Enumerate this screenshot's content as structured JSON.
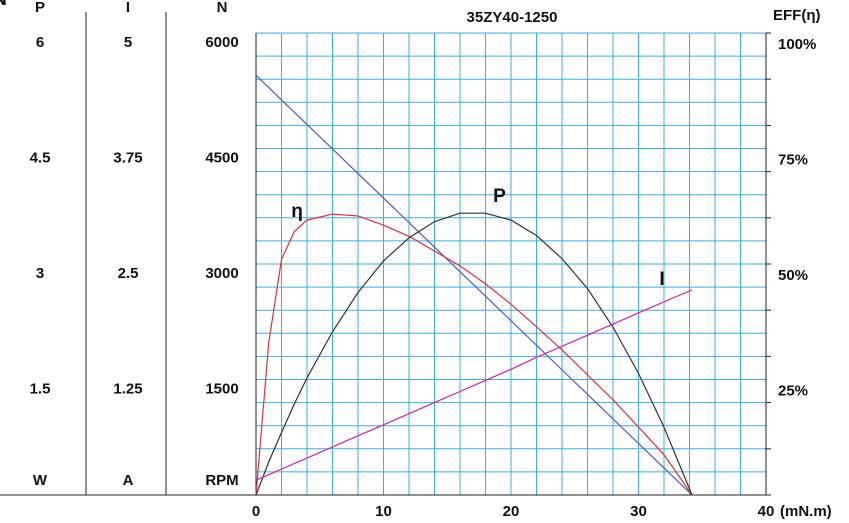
{
  "chart_data": {
    "type": "line",
    "title": "35ZY40-1250",
    "x_label": "(mN.m)",
    "x": [
      0,
      1,
      2,
      3,
      4,
      6,
      8,
      10,
      12,
      14,
      16,
      18,
      20,
      22,
      24,
      26,
      28,
      30,
      32,
      34.2
    ],
    "xlim": [
      0,
      40
    ],
    "xticks": [
      0,
      10,
      20,
      30,
      40
    ],
    "xgrid": [
      0,
      2,
      4,
      6,
      8,
      10,
      12,
      14,
      16,
      18,
      20,
      22,
      24,
      26,
      28,
      30,
      32,
      34,
      36,
      38,
      40
    ],
    "grid": true,
    "axes": {
      "p": {
        "label": "P",
        "unit": "W",
        "lim": [
          0,
          6
        ],
        "ticks": [
          1.5,
          3,
          4.5,
          6
        ]
      },
      "i": {
        "label": "I",
        "unit": "A",
        "lim": [
          0,
          5
        ],
        "ticks": [
          1.25,
          2.5,
          3.75,
          5
        ]
      },
      "n": {
        "label": "N",
        "unit": "RPM",
        "lim": [
          0,
          6000
        ],
        "ticks": [
          1500,
          3000,
          4500,
          6000
        ],
        "grid": [
          0,
          300,
          600,
          900,
          1200,
          1500,
          1800,
          2100,
          2400,
          2700,
          3000,
          3300,
          3600,
          3900,
          4200,
          4500,
          4800,
          5100,
          5400,
          5700,
          6000
        ]
      },
      "eff": {
        "label": "EFF(η)",
        "lim": [
          0,
          100
        ],
        "ticks": [
          {
            "value": 25,
            "label": "25%"
          },
          {
            "value": 50,
            "label": "50%"
          },
          {
            "value": 75,
            "label": "75%"
          },
          {
            "value": 100,
            "label": "100%"
          }
        ],
        "minor": [
          0,
          10,
          20,
          30,
          40,
          50,
          60,
          70,
          80,
          90,
          100
        ]
      }
    },
    "series": [
      {
        "name": "N",
        "axis": "n",
        "color": "#4b5cc4",
        "values": [
          5450,
          5291,
          5131,
          4972,
          4813,
          4494,
          4175,
          3856,
          3538,
          3219,
          2900,
          2582,
          2263,
          1944,
          1625,
          1307,
          988,
          669,
          351,
          0
        ]
      },
      {
        "name": "η",
        "axis": "eff",
        "color": "#e0303a",
        "values": [
          0,
          33,
          51,
          57,
          59.5,
          60.8,
          60.4,
          58.4,
          56,
          52.8,
          49.6,
          45.7,
          41.3,
          36.4,
          31.4,
          26,
          20.6,
          14.7,
          8.7,
          0
        ]
      },
      {
        "name": "P",
        "axis": "p",
        "color": "#333333",
        "values": [
          0,
          0.43,
          0.81,
          1.18,
          1.52,
          2.12,
          2.63,
          3.04,
          3.34,
          3.55,
          3.66,
          3.66,
          3.57,
          3.37,
          3.07,
          2.68,
          2.18,
          1.58,
          0.88,
          0
        ]
      },
      {
        "name": "I",
        "axis": "i",
        "color": "#d020b0",
        "values": [
          0.16,
          0.22,
          0.28,
          0.34,
          0.4,
          0.52,
          0.64,
          0.76,
          0.88,
          1.0,
          1.12,
          1.24,
          1.36,
          1.49,
          1.61,
          1.73,
          1.85,
          1.97,
          2.09,
          2.22
        ]
      }
    ]
  }
}
